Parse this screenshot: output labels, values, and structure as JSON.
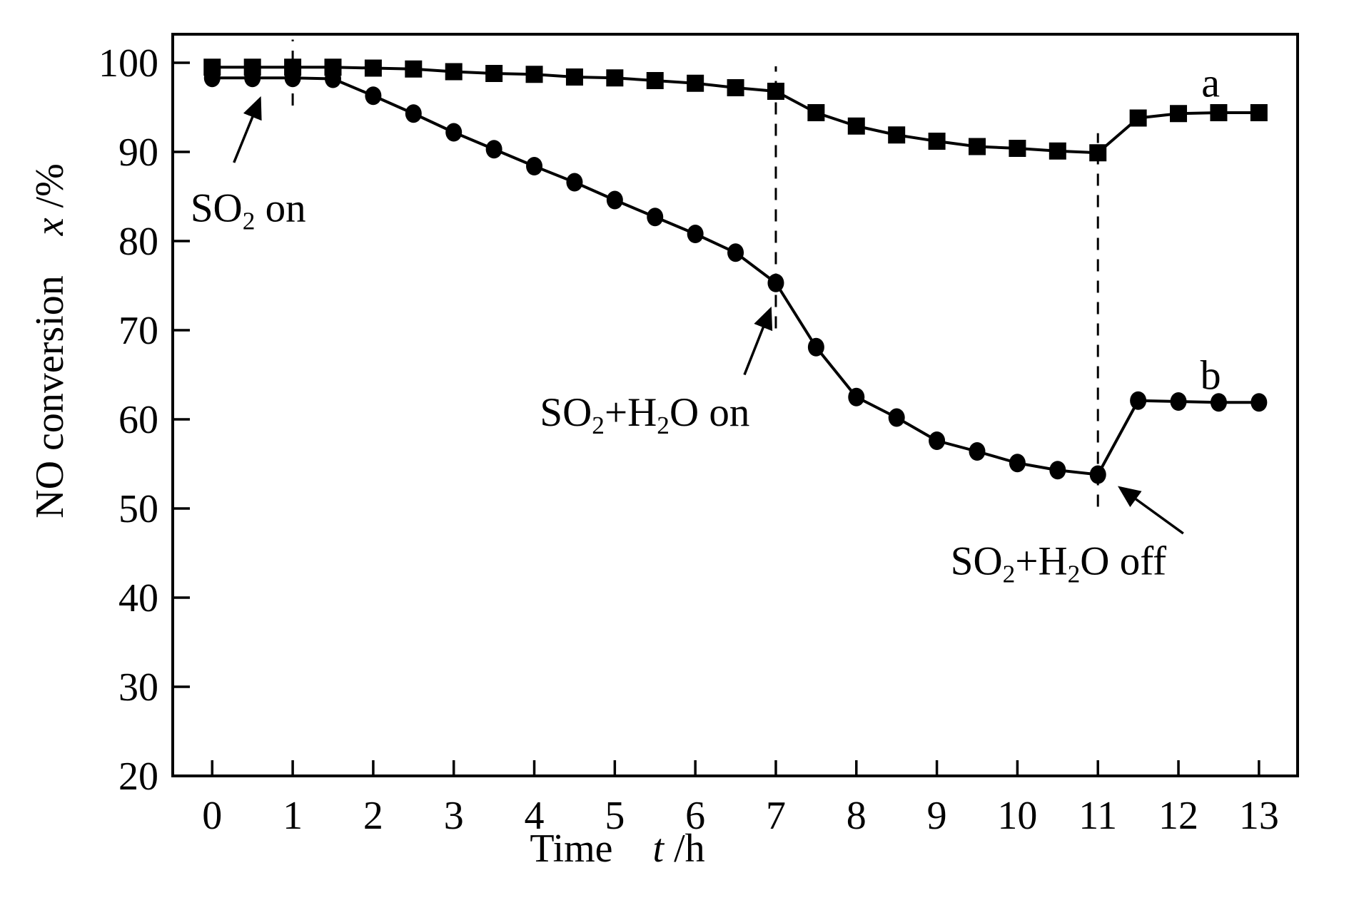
{
  "figure": {
    "background": "#ffffff",
    "ink_color": "#000000"
  },
  "chart_data": {
    "type": "line",
    "title": "",
    "xlabel_parts": [
      {
        "t": "Time"
      },
      {
        "t": "    "
      },
      {
        "t": "t",
        "style": "italic"
      },
      {
        "t": " /h"
      }
    ],
    "ylabel_parts": [
      {
        "t": "NO conversion"
      },
      {
        "t": "    "
      },
      {
        "t": "x",
        "style": "italic"
      },
      {
        "t": " /%"
      }
    ],
    "xlabel_plain": "Time t /h",
    "ylabel_plain": "NO conversion x /%",
    "xlim": [
      -0.49,
      13.48
    ],
    "ylim": [
      20,
      103.2
    ],
    "x_ticks": [
      0,
      1,
      2,
      3,
      4,
      5,
      6,
      7,
      8,
      9,
      10,
      11,
      12,
      13
    ],
    "y_ticks": [
      20,
      30,
      40,
      50,
      60,
      70,
      80,
      90,
      100
    ],
    "grid": false,
    "legend": "none",
    "x": [
      0,
      0.5,
      1,
      1.5,
      2,
      2.5,
      3,
      3.5,
      4,
      4.5,
      5,
      5.5,
      6,
      6.5,
      7,
      7.5,
      8,
      8.5,
      9,
      9.5,
      10,
      10.5,
      11,
      11.5,
      12,
      12.5,
      13
    ],
    "series": [
      {
        "name": "a",
        "marker": "square",
        "values": [
          99.5,
          99.5,
          99.5,
          99.5,
          99.4,
          99.3,
          99.0,
          98.8,
          98.7,
          98.4,
          98.3,
          98.0,
          97.7,
          97.2,
          96.8,
          94.4,
          92.9,
          91.9,
          91.2,
          90.6,
          90.4,
          90.1,
          89.9,
          93.8,
          94.3,
          94.4,
          94.4
        ]
      },
      {
        "name": "b",
        "marker": "circle",
        "values": [
          98.3,
          98.3,
          98.3,
          98.2,
          96.3,
          94.3,
          92.2,
          90.3,
          88.4,
          86.6,
          84.6,
          82.7,
          80.8,
          78.7,
          75.3,
          68.1,
          62.5,
          60.2,
          57.6,
          56.4,
          55.1,
          54.3,
          53.8,
          62.1,
          62.0,
          61.9,
          61.9
        ]
      }
    ],
    "series_labels": [
      {
        "text": "a",
        "x": 12.4,
        "y": 96.2
      },
      {
        "text": "b",
        "x": 12.4,
        "y": 63.4
      }
    ],
    "dashed_vlines": [
      {
        "x": 1,
        "y_from": 95.2,
        "y_to": 102.6
      },
      {
        "x": 7,
        "y_from": 70.2,
        "y_to": 99.6
      },
      {
        "x": 11,
        "y_from": 50.2,
        "y_to": 92.1
      }
    ],
    "annotations": [
      {
        "id": "so2-on",
        "plain": "SO2 on",
        "parts": [
          {
            "t": "SO"
          },
          {
            "t": "2",
            "style": "sub"
          },
          {
            "t": " on"
          }
        ],
        "x": -0.27,
        "y": 82.2,
        "arrow": {
          "from": [
            0.27,
            88.8
          ],
          "to": [
            0.59,
            95.9
          ]
        }
      },
      {
        "id": "so2-h2o-on",
        "plain": "SO2+H2O on",
        "parts": [
          {
            "t": "SO"
          },
          {
            "t": "2",
            "style": "sub"
          },
          {
            "t": "+H"
          },
          {
            "t": "2",
            "style": "sub"
          },
          {
            "t": "O on"
          }
        ],
        "x": 4.07,
        "y": 59.3,
        "arrow": {
          "from": [
            6.61,
            65.0
          ],
          "to": [
            6.93,
            72.3
          ]
        }
      },
      {
        "id": "so2-h2o-off",
        "plain": "SO2+H2O off",
        "parts": [
          {
            "t": "SO"
          },
          {
            "t": "2",
            "style": "sub"
          },
          {
            "t": "+H"
          },
          {
            "t": "2",
            "style": "sub"
          },
          {
            "t": "O off"
          }
        ],
        "x": 9.17,
        "y": 42.6,
        "arrow": {
          "from": [
            12.06,
            47.2
          ],
          "to": [
            11.28,
            52.3
          ]
        }
      }
    ]
  }
}
